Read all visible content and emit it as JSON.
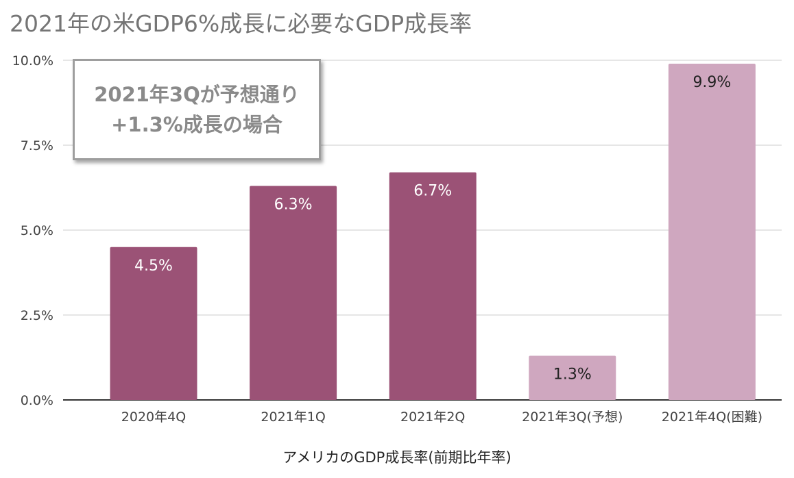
{
  "title": "2021年の米GDP6%成長に必要なGDP成長率",
  "annotation": {
    "line1": "2021年3Qが予想通り",
    "line2": "+1.3%成長の場合"
  },
  "colors": {
    "actual": "#9b5276",
    "projected": "#cfa7bf",
    "grid": "#cccccc",
    "axis": "#333333"
  },
  "chart_data": {
    "type": "bar",
    "title": "2021年の米GDP6%成長に必要なGDP成長率",
    "xlabel": "アメリカのGDP成長率(前期比年率)",
    "ylabel": "",
    "categories": [
      "2020年4Q",
      "2021年1Q",
      "2021年2Q",
      "2021年3Q(予想)",
      "2021年4Q(困難)"
    ],
    "values": [
      4.5,
      6.3,
      6.7,
      1.3,
      9.9
    ],
    "data_labels": [
      "4.5%",
      "6.3%",
      "6.7%",
      "1.3%",
      "9.9%"
    ],
    "bar_status": [
      "actual",
      "actual",
      "actual",
      "projected",
      "projected"
    ],
    "ylim": [
      0,
      10
    ],
    "yticks": [
      0,
      2.5,
      5,
      7.5,
      10
    ],
    "ytick_labels": [
      "0.0%",
      "2.5%",
      "5.0%",
      "7.5%",
      "10.0%"
    ],
    "grid": true,
    "legend": "none"
  }
}
